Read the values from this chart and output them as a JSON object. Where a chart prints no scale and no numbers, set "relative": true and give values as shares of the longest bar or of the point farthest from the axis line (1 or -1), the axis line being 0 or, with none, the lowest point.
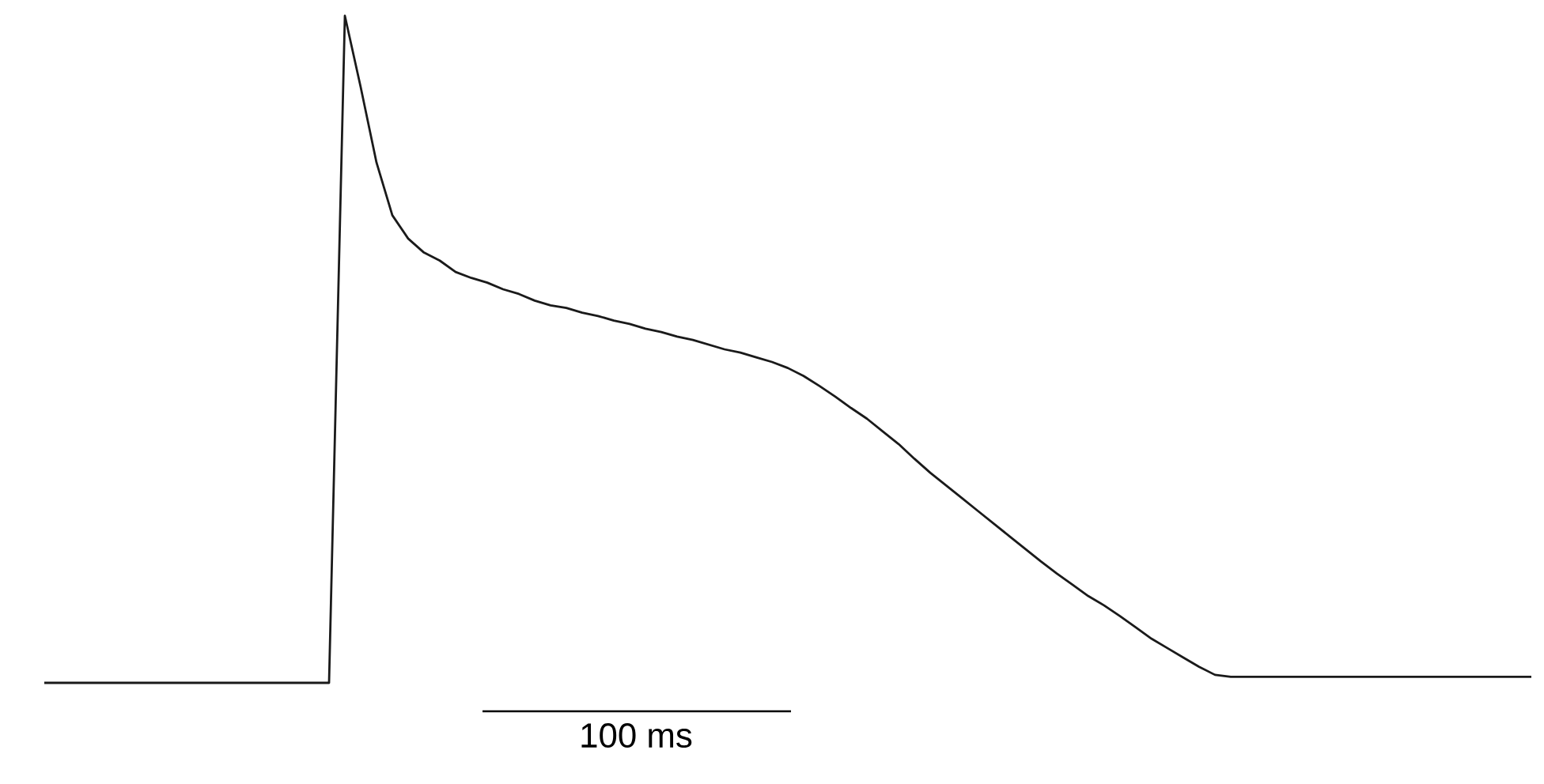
{
  "chart_data": {
    "type": "line",
    "relative": true,
    "tick_labels": false,
    "marker": "none",
    "line_style": "solid",
    "categories": [
      null,
      null,
      null,
      null,
      null,
      null,
      null,
      null,
      null,
      null,
      null,
      null,
      null,
      null,
      null,
      null,
      null,
      null,
      null,
      null,
      null,
      null,
      null,
      null,
      null,
      null,
      null,
      null,
      null,
      null,
      null,
      null,
      null,
      null,
      null,
      null,
      null,
      null,
      null,
      null,
      null,
      null,
      null,
      null,
      null,
      null,
      null,
      null,
      null,
      null,
      null,
      null,
      null,
      null,
      null,
      null,
      null,
      null,
      null,
      null,
      null,
      null,
      null,
      null,
      null,
      null,
      null,
      null,
      null,
      null,
      null,
      null,
      null,
      null,
      null,
      null,
      null,
      null,
      null,
      null,
      null,
      null,
      null,
      null,
      null,
      null,
      null,
      null,
      null,
      null,
      null,
      null,
      null,
      null,
      null
    ],
    "series": [
      {
        "color": "#1a1a1a",
        "values": [
          0,
          0,
          0,
          0,
          0,
          0,
          0,
          0,
          0,
          0,
          0,
          0,
          0,
          0,
          0,
          0,
          0,
          0,
          0,
          1,
          0.893,
          0.78,
          0.701,
          0.666,
          0.645,
          0.633,
          0.616,
          0.607,
          0.6,
          0.59,
          0.583,
          0.573,
          0.566,
          0.562,
          0.555,
          0.55,
          0.543,
          0.538,
          0.531,
          0.526,
          0.519,
          0.514,
          0.507,
          0.5,
          0.495,
          0.488,
          0.481,
          0.472,
          0.46,
          0.445,
          0.429,
          0.412,
          0.396,
          0.377,
          0.358,
          0.336,
          0.315,
          0.296,
          0.277,
          0.258,
          0.239,
          0.22,
          0.201,
          0.182,
          0.164,
          0.147,
          0.13,
          0.116,
          0.1,
          0.083,
          0.066,
          0.052,
          0.038,
          0.024,
          0.012,
          0.009,
          0.009,
          0.009,
          0.009,
          0.009,
          0.009,
          0.009,
          0.009,
          0.009,
          0.009,
          0.009,
          0.009,
          0.009,
          0.009,
          0.009,
          0.009,
          0.009,
          0.009,
          0.009,
          0.009
        ]
      }
    ],
    "annotations": [
      "100 ms"
    ]
  }
}
